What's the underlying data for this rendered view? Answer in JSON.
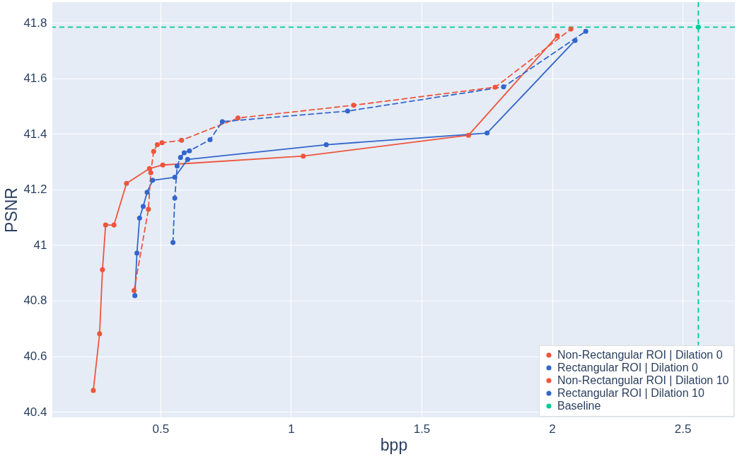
{
  "chart_data": {
    "type": "line",
    "xlabel": "bpp",
    "ylabel": "PSNR",
    "xlim": [
      0.086,
      2.7
    ],
    "ylim": [
      40.38,
      41.874
    ],
    "xticks": [
      0.5,
      1,
      1.5,
      2,
      2.5
    ],
    "yticks": [
      40.4,
      40.6,
      40.8,
      41,
      41.2,
      41.4,
      41.6,
      41.8
    ],
    "grid": true,
    "legend": "bottom right",
    "marker": "circle",
    "series": [
      {
        "name": "Non-Rectangular ROI | Dilation 0",
        "color": "#ef553b",
        "line_style": "solid",
        "x": [
          0.243,
          0.267,
          0.278,
          0.29,
          0.322,
          0.37,
          0.458,
          0.509,
          1.047,
          1.68,
          2.02
        ],
        "values": [
          40.477,
          40.681,
          40.911,
          41.072,
          41.072,
          41.222,
          41.275,
          41.288,
          41.32,
          41.395,
          41.753
        ]
      },
      {
        "name": "Rectangular ROI | Dilation 0",
        "color": "#3366cc",
        "line_style": "solid",
        "x": [
          0.402,
          0.41,
          0.42,
          0.434,
          0.449,
          0.47,
          0.555,
          0.604,
          1.135,
          1.751,
          2.088
        ],
        "values": [
          40.818,
          40.971,
          41.097,
          41.139,
          41.19,
          41.233,
          41.244,
          41.308,
          41.361,
          41.403,
          41.736
        ]
      },
      {
        "name": "Non-Rectangular ROI | Dilation 10",
        "color": "#ef553b",
        "line_style": "dashed",
        "x": [
          0.399,
          0.454,
          0.463,
          0.474,
          0.488,
          0.506,
          0.581,
          0.797,
          1.24,
          1.782,
          2.072
        ],
        "values": [
          40.836,
          41.129,
          41.26,
          41.337,
          41.361,
          41.368,
          41.377,
          41.457,
          41.503,
          41.568,
          41.777
        ]
      },
      {
        "name": "Rectangular ROI | Dilation 10",
        "color": "#3366cc",
        "line_style": "dashed",
        "x": [
          0.548,
          0.555,
          0.564,
          0.577,
          0.591,
          0.611,
          0.69,
          0.737,
          1.217,
          1.814,
          2.129
        ],
        "values": [
          41.009,
          41.169,
          41.284,
          41.315,
          41.332,
          41.339,
          41.379,
          41.444,
          41.482,
          41.569,
          41.769
        ]
      },
      {
        "name": "Baseline",
        "color": "#00cc96",
        "type": "scatter",
        "x": [
          2.56
        ],
        "values": [
          41.784
        ]
      }
    ],
    "ref_lines": [
      {
        "axis": "x",
        "value": 2.56,
        "color": "#00cc96",
        "line_style": "dashed"
      },
      {
        "axis": "y",
        "value": 41.784,
        "color": "#00cc96",
        "line_style": "dashed"
      }
    ]
  }
}
